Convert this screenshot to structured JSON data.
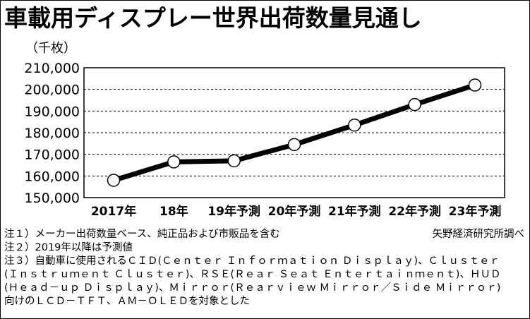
{
  "chart_data": {
    "type": "line",
    "title": "車載用ディスプレー世界出荷数量見通し",
    "ylabel": "（千枚）",
    "xlabel": "",
    "categories": [
      "2017年",
      "18年",
      "19年予測",
      "20年予測",
      "21年予測",
      "22年予測",
      "23年予測"
    ],
    "series": [
      {
        "values": [
          158000,
          166500,
          167000,
          174500,
          183500,
          193000,
          202000
        ]
      }
    ],
    "ylim": [
      150000,
      210000
    ],
    "yticks": [
      150000,
      160000,
      170000,
      180000,
      190000,
      200000,
      210000
    ],
    "ytick_labels": [
      "150,000",
      "160,000",
      "170,000",
      "180,000",
      "190,000",
      "200,000",
      "210,000"
    ],
    "grid": "horizontal dashed",
    "legend": "none",
    "line_color": "#000000",
    "marker": "white circle"
  },
  "notes": [
    "注１）メーカー出荷数量ベース、純正品および市販品を含む",
    "注２）2019年以降は予測値",
    "注３）自動車に使用されるＣＩＤ(Ｃｅｎｔｅｒ Ｉｎｆｏｒｍａｔｉｏｎ Ｄｉｓｐｌａｙ)、Ｃｌｕｓｔｅｒ",
    "(Ｉｎｓｔｒｕｍｅｎｔ Ｃｌｕｓｔｅｒ)、ＲＳＥ(Ｒｅａｒ Ｓｅａｔ Ｅｎｔｅｒｔａｉｎｍｅｎｔ)、ＨＵＤ",
    "(Ｈｅａｄ－ｕｐ Ｄｉｓｐｌａｙ)、Ｍｉｒｒｏｒ(Ｒｅａｒｖｉｅｗ Ｍｉｒｒｏｒ／Ｓｉｄｅ Ｍｉｒｒｏｒ)",
    "向けのＬＣＤ－ＴＦＴ、ＡＭ－ＯＬＥＤを対象とした"
  ],
  "source": "矢野経済研究所調べ"
}
